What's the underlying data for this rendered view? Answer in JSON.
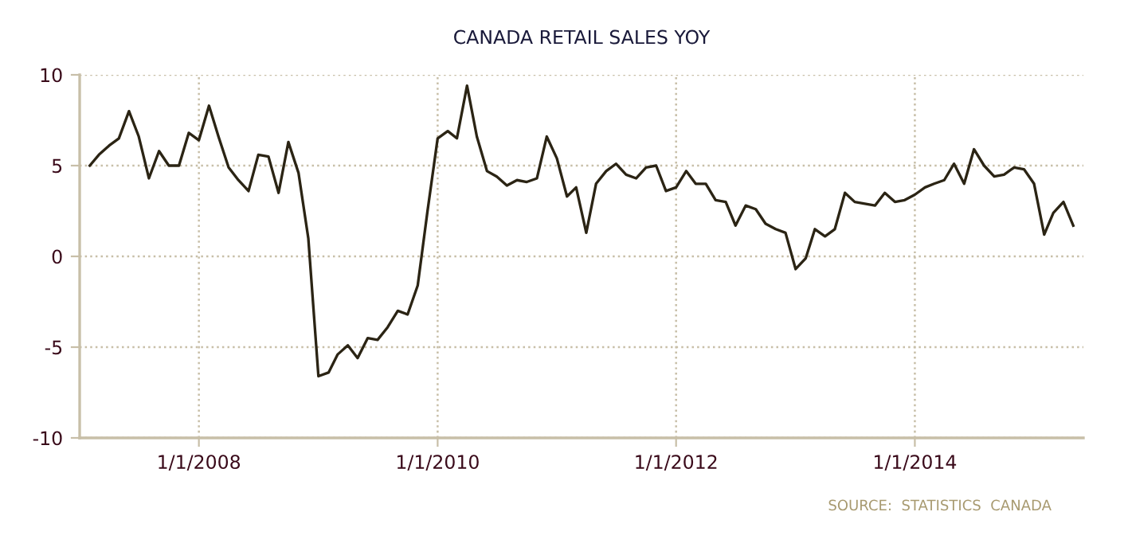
{
  "chart_data": {
    "type": "line",
    "title": "CANADA RETAIL SALES YOY",
    "x": [
      "2007-02",
      "2007-03",
      "2007-04",
      "2007-05",
      "2007-06",
      "2007-07",
      "2007-08",
      "2007-09",
      "2007-10",
      "2007-11",
      "2007-12",
      "2008-01",
      "2008-02",
      "2008-03",
      "2008-04",
      "2008-05",
      "2008-06",
      "2008-07",
      "2008-08",
      "2008-09",
      "2008-10",
      "2008-11",
      "2008-12",
      "2009-01",
      "2009-02",
      "2009-03",
      "2009-04",
      "2009-05",
      "2009-06",
      "2009-07",
      "2009-08",
      "2009-09",
      "2009-10",
      "2009-11",
      "2009-12",
      "2010-01",
      "2010-02",
      "2010-03",
      "2010-04",
      "2010-05",
      "2010-06",
      "2010-07",
      "2010-08",
      "2010-09",
      "2010-10",
      "2010-11",
      "2010-12",
      "2011-01",
      "2011-02",
      "2011-03",
      "2011-04",
      "2011-05",
      "2011-06",
      "2011-07",
      "2011-08",
      "2011-09",
      "2011-10",
      "2011-11",
      "2011-12",
      "2012-01",
      "2012-02",
      "2012-03",
      "2012-04",
      "2012-05",
      "2012-06",
      "2012-07",
      "2012-08",
      "2012-09",
      "2012-10",
      "2012-11",
      "2012-12",
      "2013-01",
      "2013-02",
      "2013-03",
      "2013-04",
      "2013-05",
      "2013-06",
      "2013-07",
      "2013-08",
      "2013-09",
      "2013-10",
      "2013-11",
      "2013-12",
      "2014-01",
      "2014-02",
      "2014-03",
      "2014-04",
      "2014-05",
      "2014-06",
      "2014-07",
      "2014-08",
      "2014-09",
      "2014-10",
      "2014-11",
      "2014-12",
      "2015-01",
      "2015-02",
      "2015-03",
      "2015-04",
      "2015-05"
    ],
    "series": [
      {
        "color": "#2b2414",
        "values": [
          5.0,
          5.6,
          6.1,
          6.5,
          8.0,
          6.6,
          4.3,
          5.8,
          5.0,
          5.0,
          6.8,
          6.4,
          8.3,
          6.6,
          4.9,
          4.2,
          3.6,
          5.6,
          5.5,
          3.5,
          6.3,
          4.6,
          1.0,
          -6.6,
          -6.4,
          -5.4,
          -4.9,
          -5.6,
          -4.5,
          -4.6,
          -3.9,
          -3.0,
          -3.2,
          -1.6,
          2.5,
          6.5,
          6.9,
          6.5,
          9.4,
          6.6,
          4.7,
          4.4,
          3.9,
          4.2,
          4.1,
          4.3,
          6.6,
          5.4,
          3.3,
          3.8,
          1.3,
          4.0,
          4.7,
          5.1,
          4.5,
          4.3,
          4.9,
          5.0,
          3.6,
          3.8,
          4.7,
          4.0,
          4.0,
          3.1,
          3.0,
          1.7,
          2.8,
          2.6,
          1.8,
          1.5,
          1.3,
          -0.7,
          -0.1,
          1.5,
          1.1,
          1.5,
          3.5,
          3.0,
          2.9,
          2.8,
          3.5,
          3.0,
          3.1,
          3.4,
          3.8,
          4.0,
          4.2,
          5.1,
          4.0,
          5.9,
          5.0,
          4.4,
          4.5,
          4.9,
          4.8,
          4.0,
          1.2,
          2.4,
          3.0,
          1.7
        ]
      }
    ],
    "xlim": [
      "2007-01",
      "2015-06"
    ],
    "xticks": [
      {
        "value": "2008-01",
        "label": "1/1/2008"
      },
      {
        "value": "2010-01",
        "label": "1/1/2010"
      },
      {
        "value": "2012-01",
        "label": "1/1/2012"
      },
      {
        "value": "2014-01",
        "label": "1/1/2014"
      }
    ],
    "ylim": [
      -10,
      10
    ],
    "yticks": [
      -10,
      -5,
      0,
      5,
      10
    ],
    "grid": true,
    "line_style": "solid",
    "annotations": [
      "SOURCE:  STATISTICS  CANADA"
    ]
  }
}
